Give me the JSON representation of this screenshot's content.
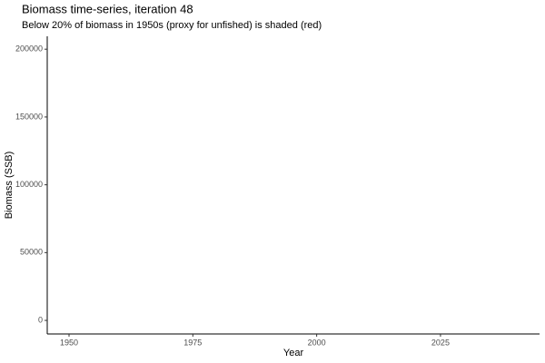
{
  "chart_data": {
    "type": "line",
    "title": "Biomass time-series, iteration 48",
    "subtitle": "Below 20% of biomass in 1950s (proxy for unfished) is shaded (red)",
    "x_label": "Year",
    "y_label": "Biomass (SSB)",
    "series": [],
    "xlim": [
      1945.6,
      2045
    ],
    "xticks": [
      1950,
      1975,
      2000,
      2025
    ],
    "ylim": [
      -10000,
      209500
    ],
    "yticks": [
      0,
      50000,
      100000,
      150000,
      200000
    ],
    "grid": false
  }
}
